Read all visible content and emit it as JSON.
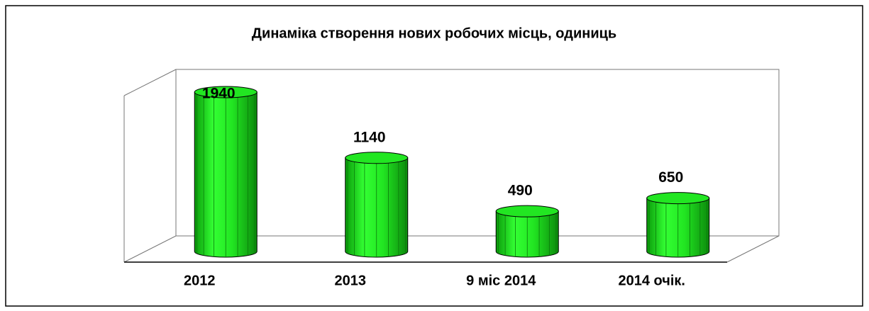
{
  "chart_data": {
    "type": "bar",
    "title": "Динаміка  створення  нових робочих місць, одиниць",
    "categories": [
      "2012",
      "2013",
      "9 міс 2014",
      "2014 очік."
    ],
    "values": [
      1940,
      1140,
      490,
      650
    ],
    "color": "#22e622"
  }
}
